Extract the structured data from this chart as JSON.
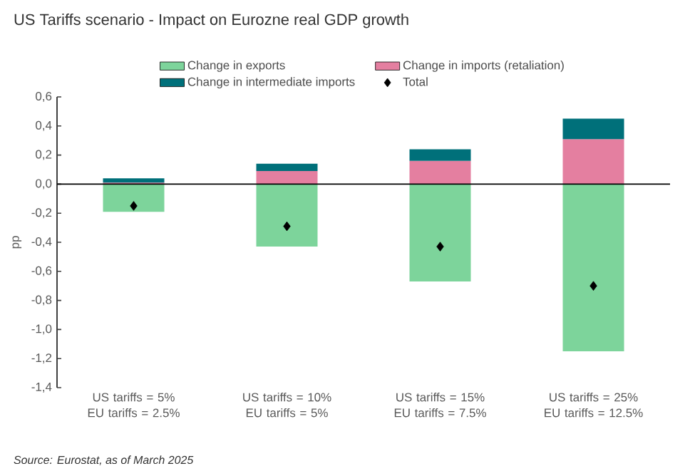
{
  "chart_data": {
    "type": "bar",
    "stacked": true,
    "title": "US Tariffs scenario - Impact on Eurozne real GDP growth",
    "ylabel": "pp",
    "categories": [
      "US tariffs = 5% EU tariffs = 2.5%",
      "US tariffs = 10% EU tariffs = 5%",
      "US tariffs = 15% EU tariffs = 7.5%",
      "US tariffs = 25% EU tariffs = 12.5%"
    ],
    "series": [
      {
        "name": "Change in exports",
        "color": "#7dd49b",
        "values": [
          -0.19,
          -0.43,
          -0.67,
          -1.15
        ]
      },
      {
        "name": "Change in imports (retaliation)",
        "color": "#e47fa0",
        "values": [
          0.01,
          0.09,
          0.16,
          0.31
        ]
      },
      {
        "name": "Change in intermediate imports",
        "color": "#00707a",
        "values": [
          0.03,
          0.05,
          0.08,
          0.14
        ]
      },
      {
        "name": "Total",
        "type": "scatter",
        "marker": "diamond",
        "color": "#000000",
        "values": [
          -0.15,
          -0.29,
          -0.43,
          -0.7
        ]
      }
    ],
    "ylim": [
      -1.4,
      0.6
    ],
    "yticks": [
      {
        "value": -1.4,
        "label": "-1,4"
      },
      {
        "value": -1.2,
        "label": "-1,2"
      },
      {
        "value": -1.0,
        "label": "-1,0"
      },
      {
        "value": -0.8,
        "label": "-0,8"
      },
      {
        "value": -0.6,
        "label": "-0,6"
      },
      {
        "value": -0.4,
        "label": "-0,4"
      },
      {
        "value": -0.2,
        "label": "-0,2"
      },
      {
        "value": 0.0,
        "label": "0,0"
      },
      {
        "value": 0.2,
        "label": "0,2"
      },
      {
        "value": 0.4,
        "label": "0,4"
      },
      {
        "value": 0.6,
        "label": "0,6"
      }
    ],
    "legend": "top",
    "grid": false,
    "ref_lines": [
      {
        "axis": "y",
        "value": 0,
        "color": "#000000"
      }
    ],
    "annotations": [
      "*Source: Eurostat, as of March 2025*"
    ]
  }
}
